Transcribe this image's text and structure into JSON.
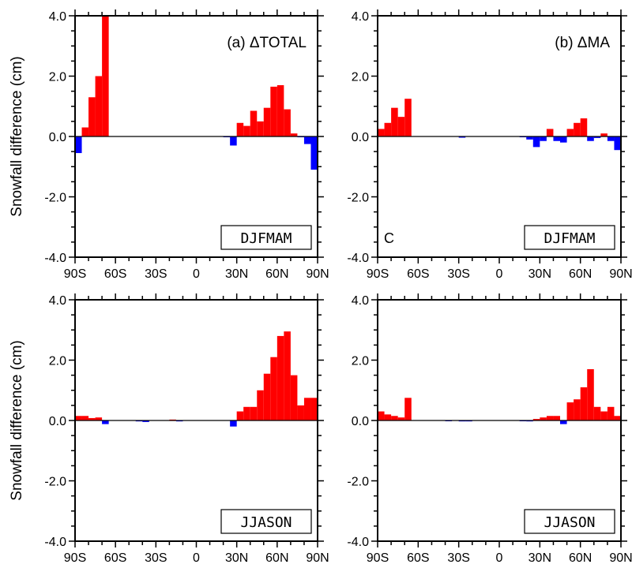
{
  "figure": {
    "ylabel": "Snowfall difference (cm)"
  },
  "chart_data": [
    {
      "type": "bar",
      "panel": "top-left",
      "title": "(a) ΔTOTAL",
      "season": "DJFMAM",
      "ylim": [
        -4.0,
        4.0
      ],
      "yticks": [
        "-4.0",
        "-2.0",
        "0.0",
        "2.0",
        "4.0"
      ],
      "xlim": [
        -90,
        90
      ],
      "xticks": [
        "90S",
        "60S",
        "30S",
        "0",
        "30N",
        "60N",
        "90N"
      ],
      "ylabel": "Snowfall difference (cm)",
      "bar_width": 5,
      "x": [
        -87.5,
        -82.5,
        -77.5,
        -72.5,
        -67.5,
        22.5,
        27.5,
        32.5,
        37.5,
        42.5,
        47.5,
        52.5,
        57.5,
        62.5,
        67.5,
        72.5,
        77.5,
        82.5,
        87.5
      ],
      "values": [
        -0.55,
        0.3,
        1.3,
        2.0,
        4.0,
        -0.02,
        -0.3,
        0.45,
        0.35,
        0.85,
        0.5,
        0.95,
        1.65,
        1.7,
        0.9,
        0.1,
        -0.02,
        -0.25,
        -1.1
      ]
    },
    {
      "type": "bar",
      "panel": "top-right",
      "title": "(b) ΔMA",
      "season": "DJFMAM",
      "note": "C",
      "ylim": [
        -4.0,
        4.0
      ],
      "yticks": [
        "-4.0",
        "-2.0",
        "0.0",
        "2.0",
        "4.0"
      ],
      "xlim": [
        -90,
        90
      ],
      "xticks": [
        "90S",
        "60S",
        "30S",
        "0",
        "30N",
        "60N",
        "90N"
      ],
      "bar_width": 5,
      "x": [
        -87.5,
        -82.5,
        -77.5,
        -72.5,
        -67.5,
        -27.5,
        17.5,
        22.5,
        27.5,
        32.5,
        37.5,
        42.5,
        47.5,
        52.5,
        57.5,
        62.5,
        67.5,
        72.5,
        77.5,
        82.5,
        87.5
      ],
      "values": [
        0.25,
        0.45,
        0.95,
        0.65,
        1.25,
        -0.04,
        -0.02,
        -0.1,
        -0.35,
        -0.15,
        0.25,
        -0.15,
        -0.2,
        0.25,
        0.45,
        0.6,
        -0.15,
        -0.05,
        0.1,
        -0.15,
        -0.45
      ]
    },
    {
      "type": "bar",
      "panel": "bottom-left",
      "title": "",
      "season": "JJASON",
      "ylim": [
        -4.0,
        4.0
      ],
      "yticks": [
        "-4.0",
        "-2.0",
        "0.0",
        "2.0",
        "4.0"
      ],
      "xlim": [
        -90,
        90
      ],
      "xticks": [
        "90S",
        "60S",
        "30S",
        "0",
        "30N",
        "60N",
        "90N"
      ],
      "ylabel": "Snowfall difference (cm)",
      "bar_width": 5,
      "x": [
        -87.5,
        -82.5,
        -77.5,
        -72.5,
        -67.5,
        -42.5,
        -37.5,
        -17.5,
        -12.5,
        27.5,
        32.5,
        37.5,
        42.5,
        47.5,
        52.5,
        57.5,
        62.5,
        67.5,
        72.5,
        77.5,
        82.5,
        87.5
      ],
      "values": [
        0.15,
        0.15,
        0.08,
        0.1,
        -0.12,
        -0.03,
        -0.05,
        0.03,
        -0.03,
        -0.2,
        0.3,
        0.45,
        0.45,
        1.0,
        1.55,
        2.1,
        2.8,
        2.95,
        1.5,
        0.5,
        0.75,
        0.75
      ]
    },
    {
      "type": "bar",
      "panel": "bottom-right",
      "title": "",
      "season": "JJASON",
      "ylim": [
        -4.0,
        4.0
      ],
      "yticks": [
        "-4.0",
        "-2.0",
        "0.0",
        "2.0",
        "4.0"
      ],
      "xlim": [
        -90,
        90
      ],
      "xticks": [
        "90S",
        "60S",
        "30S",
        "0",
        "30N",
        "60N",
        "90N"
      ],
      "bar_width": 5,
      "x": [
        -87.5,
        -82.5,
        -77.5,
        -72.5,
        -67.5,
        -37.5,
        -27.5,
        -22.5,
        17.5,
        22.5,
        27.5,
        32.5,
        37.5,
        42.5,
        47.5,
        52.5,
        57.5,
        62.5,
        67.5,
        72.5,
        77.5,
        82.5,
        87.5
      ],
      "values": [
        0.3,
        0.2,
        0.15,
        0.1,
        0.75,
        -0.02,
        -0.03,
        -0.03,
        -0.02,
        -0.03,
        0.05,
        0.1,
        0.15,
        0.15,
        -0.12,
        0.6,
        0.7,
        1.1,
        1.7,
        0.45,
        0.3,
        0.45,
        0.15
      ]
    }
  ],
  "colors": {
    "positive": "#ff0000",
    "negative": "#0000ff",
    "axis": "#000000"
  }
}
